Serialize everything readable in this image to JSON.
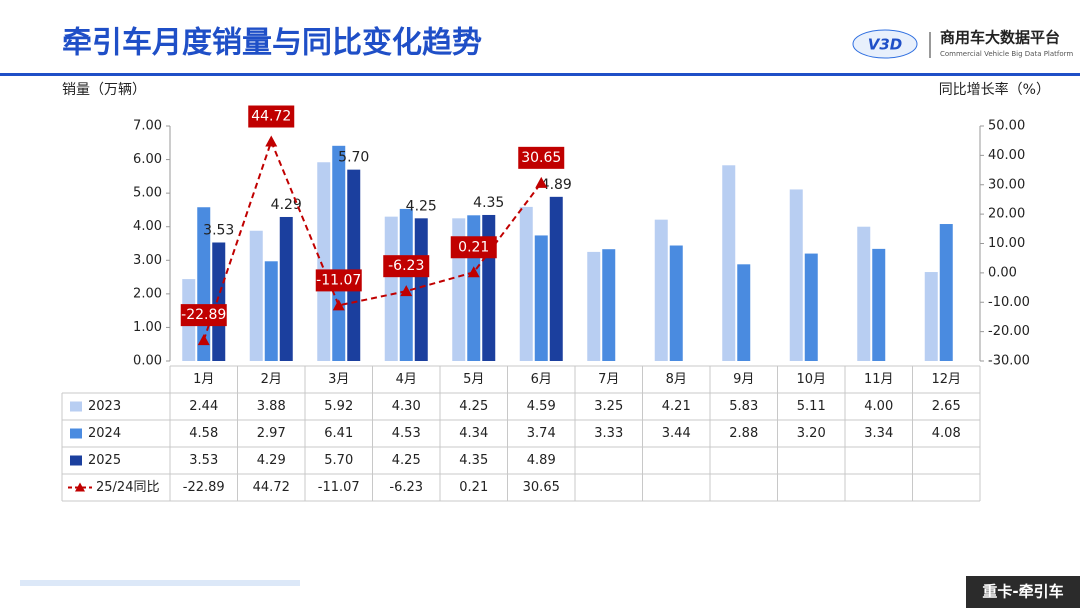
{
  "header": {
    "title": "牵引车月度销量与同比变化趋势",
    "logo_text": "商用车大数据平台",
    "logo_subtext": "Commercial Vehicle Big Data Platform",
    "logo_mark": "V3D"
  },
  "badge": "重卡-牵引车",
  "chart_data": {
    "type": "bar",
    "y_label": "销量（万辆）",
    "y2_label": "同比增长率（%）",
    "categories": [
      "1月",
      "2月",
      "3月",
      "4月",
      "5月",
      "6月",
      "7月",
      "8月",
      "9月",
      "10月",
      "11月",
      "12月"
    ],
    "ylim": [
      0,
      7
    ],
    "yticks": [
      {
        "value": 0,
        "label": "0.00"
      },
      {
        "value": 1,
        "label": "1.00"
      },
      {
        "value": 2,
        "label": "2.00"
      },
      {
        "value": 3,
        "label": "3.00"
      },
      {
        "value": 4,
        "label": "4.00"
      },
      {
        "value": 5,
        "label": "5.00"
      },
      {
        "value": 6,
        "label": "6.00"
      },
      {
        "value": 7,
        "label": "7.00"
      }
    ],
    "y2lim": [
      -30,
      50
    ],
    "y2ticks": [
      {
        "value": -30,
        "label": "-30.00"
      },
      {
        "value": -20,
        "label": "-20.00"
      },
      {
        "value": -10,
        "label": "-10.00"
      },
      {
        "value": 0,
        "label": "0.00"
      },
      {
        "value": 10,
        "label": "10.00"
      },
      {
        "value": 20,
        "label": "20.00"
      },
      {
        "value": 30,
        "label": "30.00"
      },
      {
        "value": 40,
        "label": "40.00"
      },
      {
        "value": 50,
        "label": "50.00"
      }
    ],
    "grid": false,
    "series": [
      {
        "name": "2023",
        "color": "#b8cef2",
        "values": [
          2.44,
          3.88,
          5.92,
          4.3,
          4.25,
          4.59,
          3.25,
          4.21,
          5.83,
          5.11,
          4,
          2.65
        ],
        "value_labels": [
          "2.44",
          "3.88",
          "5.92",
          "4.30",
          "4.25",
          "4.59",
          "3.25",
          "4.21",
          "5.83",
          "5.11",
          "4.00",
          "2.65"
        ]
      },
      {
        "name": "2024",
        "color": "#4a8be0",
        "values": [
          4.58,
          2.97,
          6.41,
          4.53,
          4.34,
          3.74,
          3.33,
          3.44,
          2.88,
          3.2,
          3.34,
          4.08
        ],
        "value_labels": [
          "4.58",
          "2.97",
          "6.41",
          "4.53",
          "4.34",
          "3.74",
          "3.33",
          "3.44",
          "2.88",
          "3.20",
          "3.34",
          "4.08"
        ]
      },
      {
        "name": "2025",
        "color": "#1b3f9e",
        "values": [
          3.53,
          4.29,
          5.7,
          4.25,
          4.35,
          4.89,
          null,
          null,
          null,
          null,
          null,
          null
        ],
        "value_labels": [
          "3.53",
          "4.29",
          "5.70",
          "4.25",
          "4.35",
          "4.89",
          null,
          null,
          null,
          null,
          null,
          null
        ]
      },
      {
        "name": "25/24同比",
        "color": "#c00000",
        "type": "line",
        "axis": "y2",
        "values": [
          -22.89,
          44.72,
          -11.07,
          -6.23,
          0.21,
          30.65,
          null,
          null,
          null,
          null,
          null,
          null
        ]
      }
    ]
  }
}
